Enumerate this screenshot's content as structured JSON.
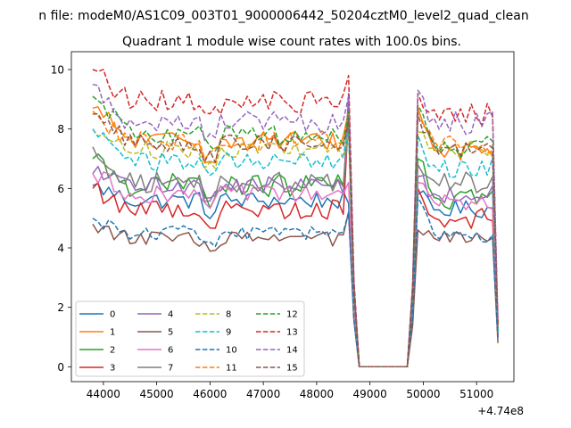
{
  "figure": {
    "suptitle": "n file: modeM0/AS1C09_003T01_9000006442_50204cztM0_level2_quad_clean",
    "title": "Quadrant 1 module wise count rates with 100.0s bins."
  },
  "chart_data": {
    "type": "line",
    "title": "Quadrant 1 module wise count rates with 100.0s bins.",
    "xlabel": "",
    "ylabel": "",
    "x_offset_label": "+4.74e8",
    "xlim": [
      43400,
      51700
    ],
    "ylim": [
      -0.5,
      10.6
    ],
    "xticks": [
      44000,
      45000,
      46000,
      47000,
      48000,
      49000,
      50000,
      51000
    ],
    "xtick_labels": [
      "44000",
      "45000",
      "46000",
      "47000",
      "48000",
      "49000",
      "50000",
      "51000"
    ],
    "yticks": [
      0,
      2,
      4,
      6,
      8,
      10
    ],
    "ytick_labels": [
      "0",
      "2",
      "4",
      "6",
      "8",
      "10"
    ],
    "grid": false,
    "legend_position": "lower-left",
    "legend_columns": 4,
    "bin_size_s": 100,
    "segment_1": {
      "start": 43800,
      "end": 48600
    },
    "segment_2": {
      "start": 49900,
      "end": 51300
    },
    "gap": {
      "start": 48800,
      "end": 49700
    },
    "gap_value": 0,
    "endpoints": {
      "x1": 48700,
      "x2": 49800,
      "x3": 51400
    },
    "series": [
      {
        "name": "0",
        "color": "#1f77b4",
        "linestyle": "solid",
        "level1": 5.6,
        "level2": 5.3,
        "noise": 0.3,
        "start_value": 6.1,
        "peak1": 5.5,
        "peak2": 5.8,
        "end_value": 1.0
      },
      {
        "name": "1",
        "color": "#ff7f0e",
        "linestyle": "solid",
        "level1": 7.6,
        "level2": 7.3,
        "noise": 0.35,
        "start_value": 8.7,
        "peak1": 8.6,
        "peak2": 8.7,
        "end_value": 1.3
      },
      {
        "name": "2",
        "color": "#2ca02c",
        "linestyle": "solid",
        "level1": 6.1,
        "level2": 5.7,
        "noise": 0.4,
        "start_value": 7.0,
        "peak1": 8.6,
        "peak2": 7.0,
        "end_value": 1.1
      },
      {
        "name": "3",
        "color": "#d62728",
        "linestyle": "solid",
        "level1": 5.3,
        "level2": 5.0,
        "noise": 0.35,
        "start_value": 6.0,
        "peak1": 8.5,
        "peak2": 6.0,
        "end_value": 1.0
      },
      {
        "name": "4",
        "color": "#9467bd",
        "linestyle": "solid",
        "level1": 6.1,
        "level2": 5.8,
        "noise": 0.3,
        "start_value": 6.5,
        "peak1": 9.2,
        "peak2": 6.4,
        "end_value": 1.0
      },
      {
        "name": "5",
        "color": "#8c564b",
        "linestyle": "solid",
        "level1": 4.3,
        "level2": 4.3,
        "noise": 0.25,
        "start_value": 4.8,
        "peak1": 5.2,
        "peak2": 4.6,
        "end_value": 0.8
      },
      {
        "name": "6",
        "color": "#e377c2",
        "linestyle": "solid",
        "level1": 5.8,
        "level2": 5.5,
        "noise": 0.3,
        "start_value": 6.5,
        "peak1": 6.2,
        "peak2": 6.2,
        "end_value": 1.0
      },
      {
        "name": "7",
        "color": "#7f7f7f",
        "linestyle": "solid",
        "level1": 6.2,
        "level2": 6.2,
        "noise": 0.35,
        "start_value": 7.4,
        "peak1": 8.1,
        "peak2": 6.8,
        "end_value": 1.1
      },
      {
        "name": "8",
        "color": "#bcbd22",
        "linestyle": "dashed",
        "level1": 7.3,
        "level2": 7.3,
        "noise": 0.3,
        "start_value": 8.0,
        "peak1": 7.9,
        "peak2": 7.9,
        "end_value": 1.3
      },
      {
        "name": "9",
        "color": "#17becf",
        "linestyle": "dashed",
        "level1": 6.9,
        "level2": 6.7,
        "noise": 0.35,
        "start_value": 8.0,
        "peak1": 8.0,
        "peak2": 7.8,
        "end_value": 1.2
      },
      {
        "name": "10",
        "color": "#1f77b4",
        "linestyle": "dashed",
        "level1": 4.5,
        "level2": 4.4,
        "noise": 0.25,
        "start_value": 5.0,
        "peak1": 5.2,
        "peak2": 5.7,
        "end_value": 0.9
      },
      {
        "name": "11",
        "color": "#ff7f0e",
        "linestyle": "dashed",
        "level1": 7.6,
        "level2": 7.5,
        "noise": 0.35,
        "start_value": 8.6,
        "peak1": 8.6,
        "peak2": 8.7,
        "end_value": 1.4
      },
      {
        "name": "12",
        "color": "#2ca02c",
        "linestyle": "dashed",
        "level1": 7.8,
        "level2": 7.4,
        "noise": 0.35,
        "start_value": 9.1,
        "peak1": 8.6,
        "peak2": 8.8,
        "end_value": 1.3
      },
      {
        "name": "13",
        "color": "#d62728",
        "linestyle": "dashed",
        "level1": 8.9,
        "level2": 8.5,
        "noise": 0.4,
        "start_value": 10.0,
        "peak1": 9.8,
        "peak2": 9.2,
        "end_value": 1.5
      },
      {
        "name": "14",
        "color": "#9467bd",
        "linestyle": "dashed",
        "level1": 8.2,
        "level2": 8.2,
        "noise": 0.4,
        "start_value": 9.5,
        "peak1": 9.1,
        "peak2": 9.3,
        "end_value": 1.4
      },
      {
        "name": "15",
        "color": "#8c564b",
        "linestyle": "dashed",
        "level1": 7.5,
        "level2": 7.3,
        "noise": 0.3,
        "start_value": 8.5,
        "peak1": 8.3,
        "peak2": 8.5,
        "end_value": 1.3
      }
    ]
  }
}
